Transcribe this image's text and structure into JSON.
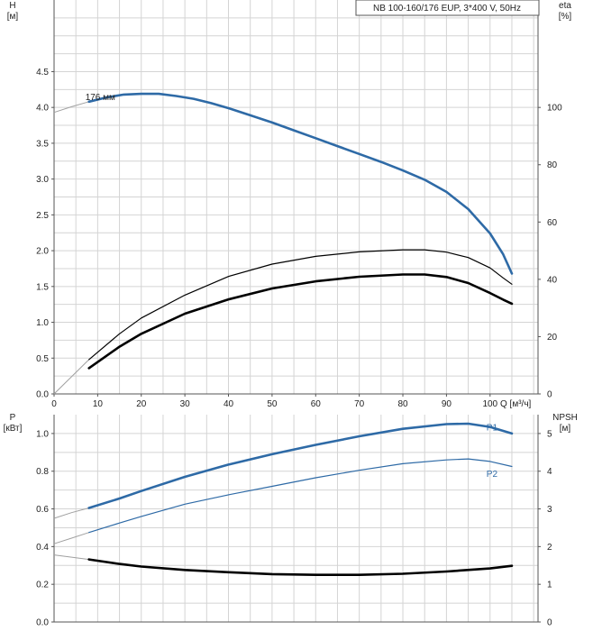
{
  "colors": {
    "blue": "#2e6aa6",
    "black": "#000000",
    "thin_gray": "#a0a0a0",
    "grid": "#d4d4d4"
  },
  "chart_data": [
    {
      "type": "line",
      "title": "NB 100-160/176 EUP, 3*400 V, 50Hz",
      "xlabel": "Q [м³/ч]",
      "ylabel_left": {
        "line1": "H",
        "line2": "[м]"
      },
      "ylabel_right": {
        "line1": "eta",
        "line2": "[%]"
      },
      "xlim": [
        0,
        111
      ],
      "ylim_left": [
        0,
        5.5
      ],
      "ylim_right": [
        0,
        137.5
      ],
      "x_ticks": [
        "0",
        "10",
        "20",
        "30",
        "40",
        "50",
        "60",
        "70",
        "80",
        "90",
        "100"
      ],
      "y_ticks_left": [
        "0.0",
        "0.5",
        "1.0",
        "1.5",
        "2.0",
        "2.5",
        "3.0",
        "3.5",
        "4.0",
        "4.5"
      ],
      "y_ticks_right": [
        "0",
        "20",
        "40",
        "60",
        "80",
        "100"
      ],
      "grid": true,
      "series": [
        {
          "name": "176 мм",
          "axis": "left",
          "color": "#2e6aa6",
          "weight": "bold",
          "extrapolated": [
            [
              0,
              3.93
            ],
            [
              4,
              4.01
            ],
            [
              8,
              4.08
            ]
          ],
          "points": [
            [
              8,
              4.08
            ],
            [
              12,
              4.14
            ],
            [
              16,
              4.18
            ],
            [
              20,
              4.19
            ],
            [
              24,
              4.19
            ],
            [
              28,
              4.16
            ],
            [
              32,
              4.12
            ],
            [
              36,
              4.06
            ],
            [
              40,
              3.99
            ],
            [
              45,
              3.89
            ],
            [
              50,
              3.79
            ],
            [
              55,
              3.68
            ],
            [
              60,
              3.57
            ],
            [
              65,
              3.46
            ],
            [
              70,
              3.35
            ],
            [
              75,
              3.24
            ],
            [
              80,
              3.12
            ],
            [
              85,
              2.99
            ],
            [
              90,
              2.82
            ],
            [
              95,
              2.58
            ],
            [
              100,
              2.24
            ],
            [
              103,
              1.95
            ],
            [
              105,
              1.68
            ]
          ]
        },
        {
          "name": "",
          "axis": "right",
          "color": "#000000",
          "weight": "thin",
          "extrapolated": [
            [
              0,
              0
            ],
            [
              4,
              6
            ],
            [
              8,
              12
            ]
          ],
          "points": [
            [
              8,
              12
            ],
            [
              15,
              21
            ],
            [
              20,
              26.5
            ],
            [
              30,
              34.5
            ],
            [
              40,
              41
            ],
            [
              50,
              45.3
            ],
            [
              60,
              48
            ],
            [
              70,
              49.6
            ],
            [
              80,
              50.3
            ],
            [
              85,
              50.3
            ],
            [
              90,
              49.5
            ],
            [
              95,
              47.6
            ],
            [
              100,
              44
            ],
            [
              103,
              40.5
            ],
            [
              105,
              38.3
            ]
          ]
        },
        {
          "name": "",
          "axis": "right",
          "color": "#000000",
          "weight": "bold",
          "points": [
            [
              8,
              9
            ],
            [
              15,
              16.5
            ],
            [
              20,
              21
            ],
            [
              30,
              28
            ],
            [
              40,
              33
            ],
            [
              50,
              36.8
            ],
            [
              60,
              39.3
            ],
            [
              70,
              40.9
            ],
            [
              80,
              41.7
            ],
            [
              85,
              41.7
            ],
            [
              90,
              40.8
            ],
            [
              95,
              38.7
            ],
            [
              100,
              35.2
            ],
            [
              103,
              32.9
            ],
            [
              105,
              31.5
            ]
          ]
        }
      ]
    },
    {
      "type": "line",
      "xlabel": "",
      "ylabel_left": {
        "line1": "P",
        "line2": "[кВт]"
      },
      "ylabel_right": {
        "line1": "NPSH",
        "line2": "[м]"
      },
      "xlim": [
        0,
        111
      ],
      "ylim_left": [
        0,
        1.1
      ],
      "ylim_right": [
        0,
        5.5
      ],
      "y_ticks_left": [
        "0.0",
        "0.2",
        "0.4",
        "0.6",
        "0.8",
        "1.0"
      ],
      "y_ticks_right": [
        "0",
        "1",
        "2",
        "3",
        "4",
        "5"
      ],
      "grid": true,
      "series": [
        {
          "name": "P1",
          "axis": "left",
          "color": "#2e6aa6",
          "weight": "bold",
          "extrapolated": [
            [
              0,
              0.55
            ],
            [
              4,
              0.58
            ],
            [
              8,
              0.605
            ]
          ],
          "points": [
            [
              8,
              0.605
            ],
            [
              15,
              0.655
            ],
            [
              20,
              0.695
            ],
            [
              30,
              0.77
            ],
            [
              40,
              0.835
            ],
            [
              50,
              0.89
            ],
            [
              60,
              0.94
            ],
            [
              70,
              0.985
            ],
            [
              80,
              1.025
            ],
            [
              90,
              1.05
            ],
            [
              95,
              1.052
            ],
            [
              100,
              1.035
            ],
            [
              105,
              1.0
            ]
          ],
          "label_at": [
            100,
            1.035
          ]
        },
        {
          "name": "P2",
          "axis": "left",
          "color": "#2e6aa6",
          "weight": "thin",
          "extrapolated": [
            [
              0,
              0.415
            ],
            [
              4,
              0.445
            ],
            [
              8,
              0.475
            ]
          ],
          "points": [
            [
              8,
              0.475
            ],
            [
              15,
              0.525
            ],
            [
              20,
              0.56
            ],
            [
              30,
              0.625
            ],
            [
              40,
              0.675
            ],
            [
              50,
              0.72
            ],
            [
              60,
              0.765
            ],
            [
              70,
              0.805
            ],
            [
              80,
              0.84
            ],
            [
              90,
              0.86
            ],
            [
              95,
              0.865
            ],
            [
              100,
              0.852
            ],
            [
              105,
              0.825
            ]
          ],
          "label_at": [
            100,
            0.79
          ]
        },
        {
          "name": "",
          "axis": "right",
          "color": "#000000",
          "weight": "bold",
          "extrapolated": [
            [
              0,
              1.78
            ],
            [
              4,
              1.72
            ],
            [
              8,
              1.66
            ]
          ],
          "points": [
            [
              8,
              1.66
            ],
            [
              15,
              1.54
            ],
            [
              20,
              1.47
            ],
            [
              30,
              1.38
            ],
            [
              40,
              1.32
            ],
            [
              50,
              1.27
            ],
            [
              60,
              1.25
            ],
            [
              70,
              1.25
            ],
            [
              80,
              1.28
            ],
            [
              90,
              1.34
            ],
            [
              100,
              1.42
            ],
            [
              105,
              1.49
            ]
          ]
        }
      ]
    }
  ]
}
